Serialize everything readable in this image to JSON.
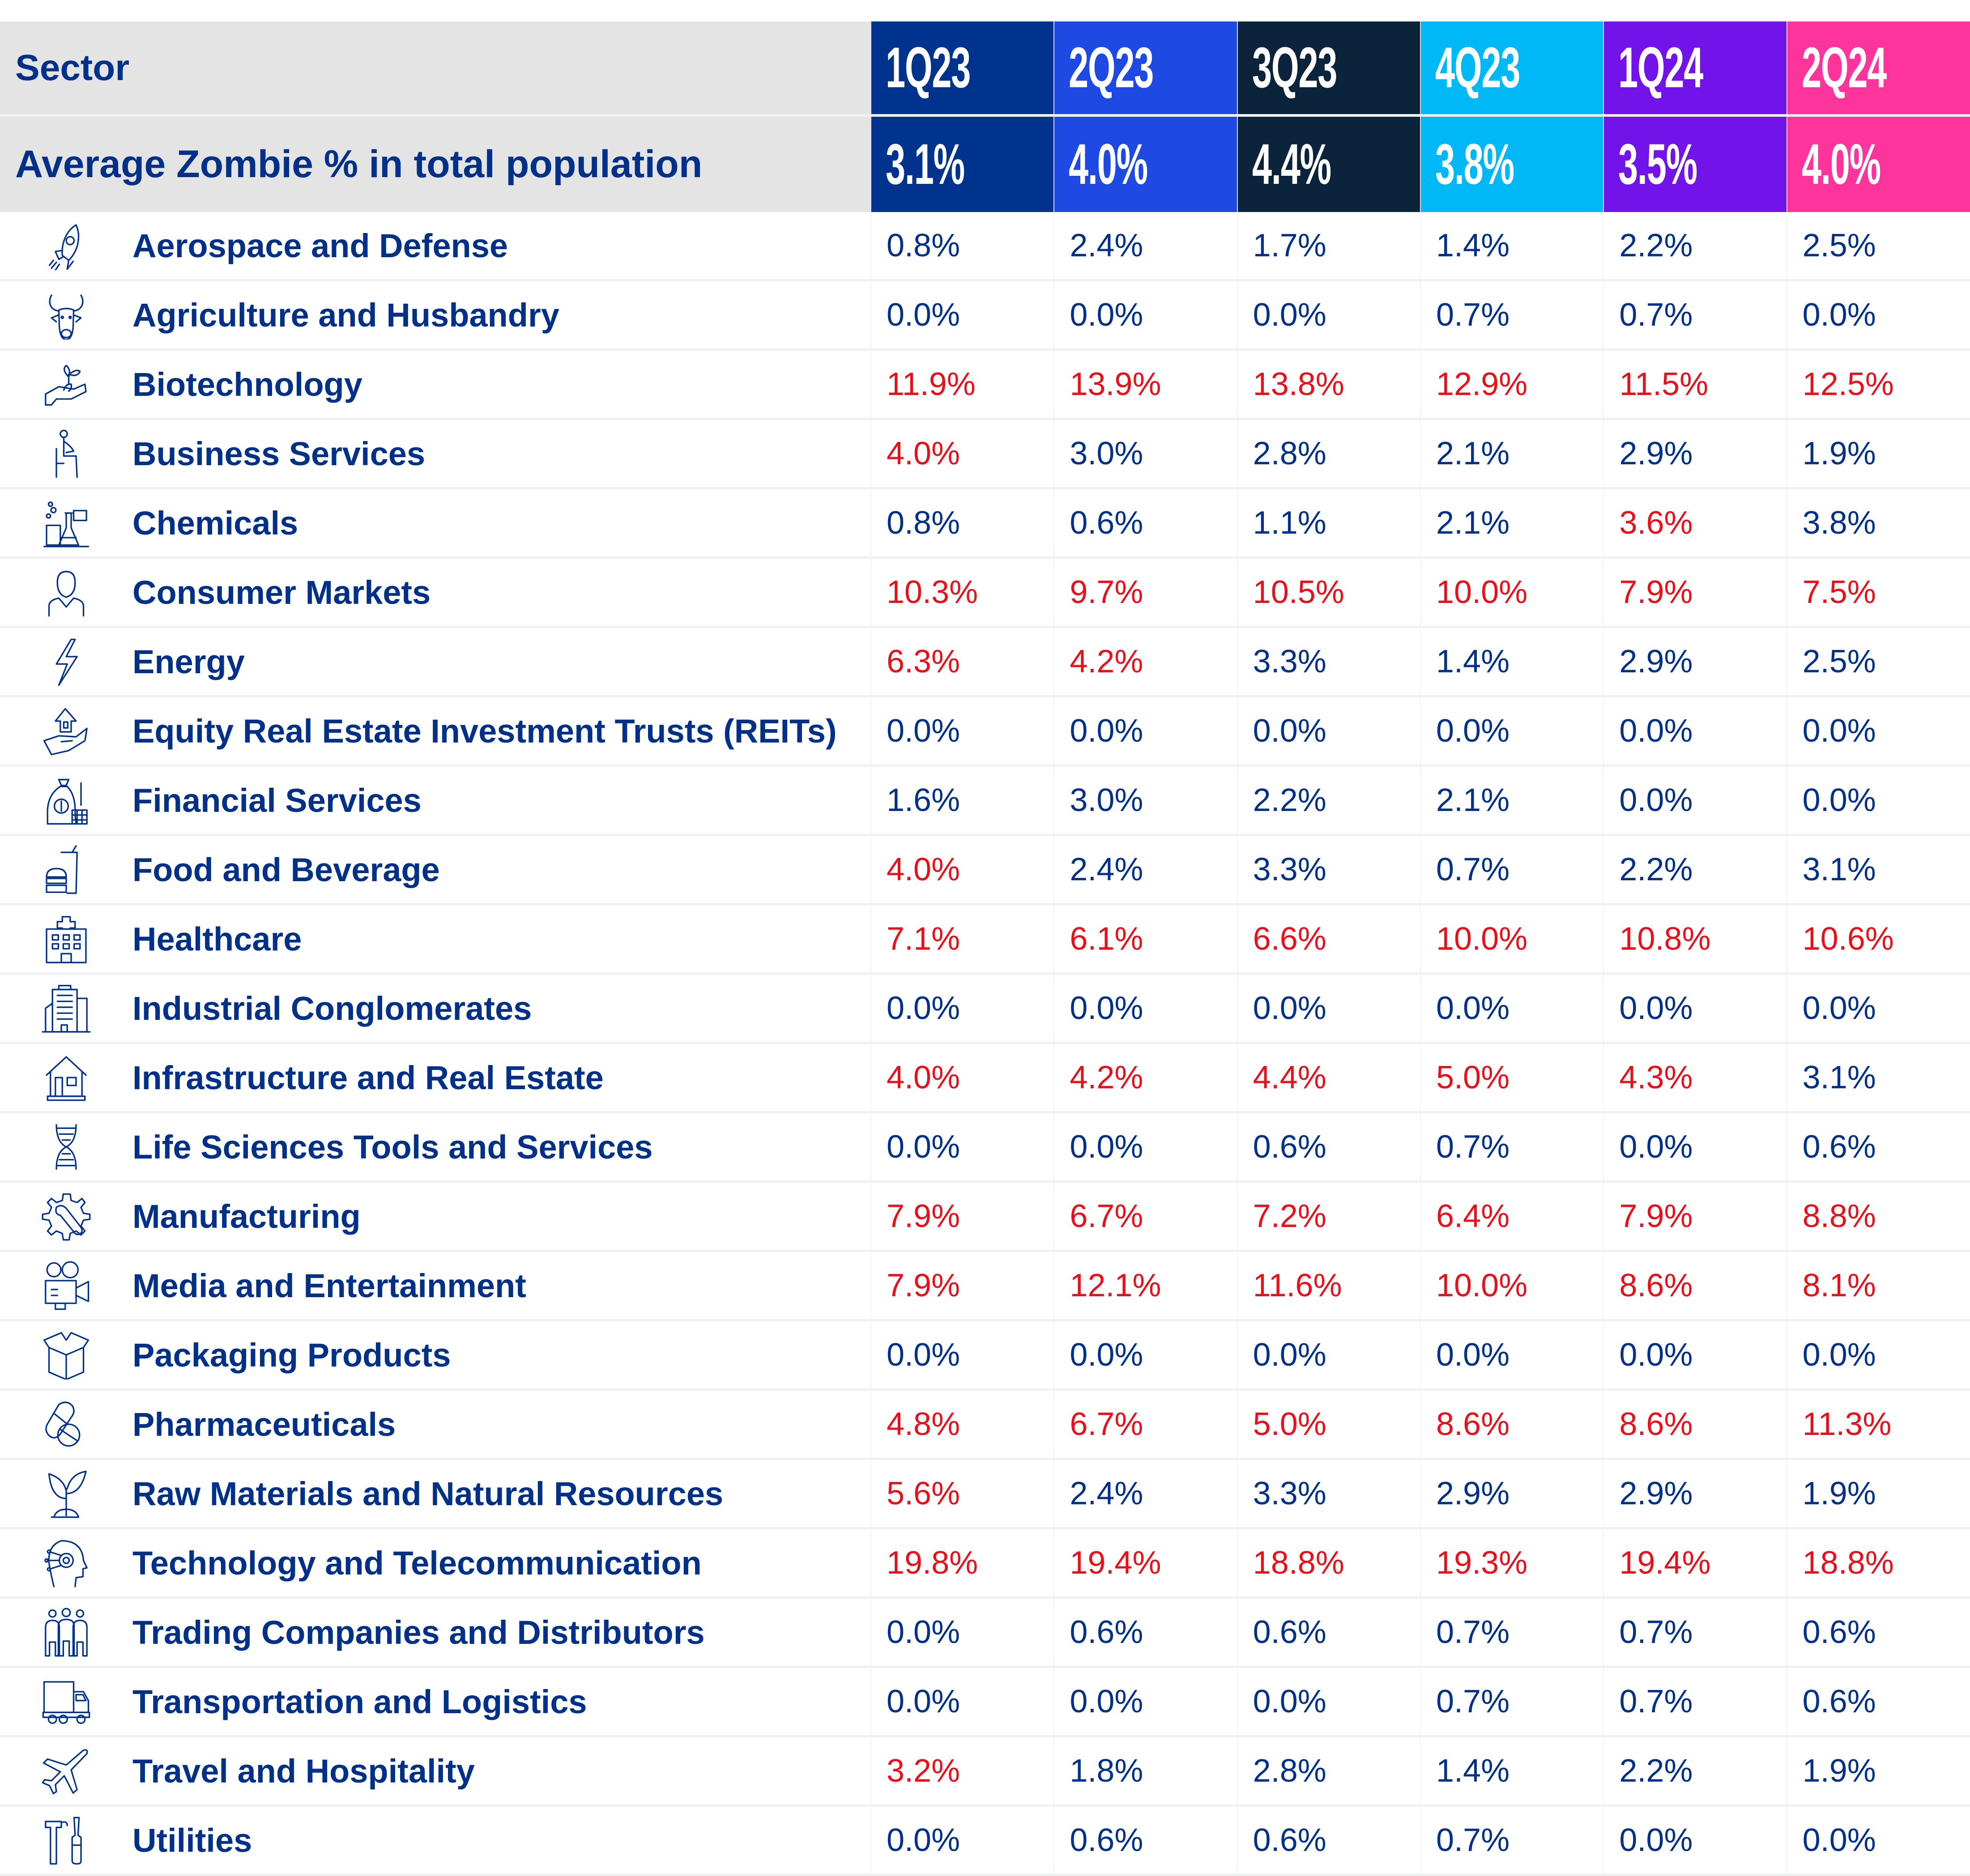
{
  "header": {
    "sector_label": "Sector",
    "average_label": "Average Zombie % in total population",
    "quarters": [
      {
        "label": "1Q23",
        "average": "3.1%",
        "color": "#00338d"
      },
      {
        "label": "2Q23",
        "average": "4.0%",
        "color": "#1e49e2"
      },
      {
        "label": "3Q23",
        "average": "4.4%",
        "color": "#0c233c"
      },
      {
        "label": "4Q23",
        "average": "3.8%",
        "color": "#00b8f5"
      },
      {
        "label": "1Q24",
        "average": "3.5%",
        "color": "#7213ea"
      },
      {
        "label": "2Q24",
        "average": "4.0%",
        "color": "#fd349c"
      }
    ]
  },
  "colors": {
    "text_primary": "#003087",
    "highlight": "#e8101a",
    "header_background": "#e4e4e4"
  },
  "rows": [
    {
      "sector": "Aerospace and Defense",
      "icon": "rocket-icon",
      "values": [
        "0.8%",
        "2.4%",
        "1.7%",
        "1.4%",
        "2.2%",
        "2.5%"
      ],
      "highlight": [
        false,
        false,
        false,
        false,
        false,
        false
      ]
    },
    {
      "sector": "Agriculture and Husbandry",
      "icon": "bull-icon",
      "values": [
        "0.0%",
        "0.0%",
        "0.0%",
        "0.7%",
        "0.7%",
        "0.0%"
      ],
      "highlight": [
        false,
        false,
        false,
        false,
        false,
        false
      ]
    },
    {
      "sector": "Biotechnology",
      "icon": "hand-sprout-icon",
      "values": [
        "11.9%",
        "13.9%",
        "13.8%",
        "12.9%",
        "11.5%",
        "12.5%"
      ],
      "highlight": [
        true,
        true,
        true,
        true,
        true,
        true
      ]
    },
    {
      "sector": "Business Services",
      "icon": "seated-person-icon",
      "values": [
        "4.0%",
        "3.0%",
        "2.8%",
        "2.1%",
        "2.9%",
        "1.9%"
      ],
      "highlight": [
        true,
        false,
        false,
        false,
        false,
        false
      ]
    },
    {
      "sector": "Chemicals",
      "icon": "lab-flask-icon",
      "values": [
        "0.8%",
        "0.6%",
        "1.1%",
        "2.1%",
        "3.6%",
        "3.8%"
      ],
      "highlight": [
        false,
        false,
        false,
        false,
        true,
        false
      ]
    },
    {
      "sector": "Consumer Markets",
      "icon": "person-icon",
      "values": [
        "10.3%",
        "9.7%",
        "10.5%",
        "10.0%",
        "7.9%",
        "7.5%"
      ],
      "highlight": [
        true,
        true,
        true,
        true,
        true,
        true
      ]
    },
    {
      "sector": "Energy",
      "icon": "lightning-icon",
      "values": [
        "6.3%",
        "4.2%",
        "3.3%",
        "1.4%",
        "2.9%",
        "2.5%"
      ],
      "highlight": [
        true,
        true,
        false,
        false,
        false,
        false
      ]
    },
    {
      "sector": "Equity Real Estate Investment Trusts (REITs)",
      "icon": "hand-house-icon",
      "values": [
        "0.0%",
        "0.0%",
        "0.0%",
        "0.0%",
        "0.0%",
        "0.0%"
      ],
      "highlight": [
        false,
        false,
        false,
        false,
        false,
        false
      ]
    },
    {
      "sector": "Financial Services",
      "icon": "money-bag-icon",
      "values": [
        "1.6%",
        "3.0%",
        "2.2%",
        "2.1%",
        "0.0%",
        "0.0%"
      ],
      "highlight": [
        false,
        false,
        false,
        false,
        false,
        false
      ]
    },
    {
      "sector": "Food and Beverage",
      "icon": "burger-drink-icon",
      "values": [
        "4.0%",
        "2.4%",
        "3.3%",
        "0.7%",
        "2.2%",
        "3.1%"
      ],
      "highlight": [
        true,
        false,
        false,
        false,
        false,
        false
      ]
    },
    {
      "sector": "Healthcare",
      "icon": "hospital-icon",
      "values": [
        "7.1%",
        "6.1%",
        "6.6%",
        "10.0%",
        "10.8%",
        "10.6%"
      ],
      "highlight": [
        true,
        true,
        true,
        true,
        true,
        true
      ]
    },
    {
      "sector": "Industrial Conglomerates",
      "icon": "office-building-icon",
      "values": [
        "0.0%",
        "0.0%",
        "0.0%",
        "0.0%",
        "0.0%",
        "0.0%"
      ],
      "highlight": [
        false,
        false,
        false,
        false,
        false,
        false
      ]
    },
    {
      "sector": "Infrastructure and Real Estate",
      "icon": "house-icon",
      "values": [
        "4.0%",
        "4.2%",
        "4.4%",
        "5.0%",
        "4.3%",
        "3.1%"
      ],
      "highlight": [
        true,
        true,
        true,
        true,
        true,
        false
      ]
    },
    {
      "sector": "Life Sciences Tools and Services",
      "icon": "dna-icon",
      "values": [
        "0.0%",
        "0.0%",
        "0.6%",
        "0.7%",
        "0.0%",
        "0.6%"
      ],
      "highlight": [
        false,
        false,
        false,
        false,
        false,
        false
      ]
    },
    {
      "sector": "Manufacturing",
      "icon": "gear-wrench-icon",
      "values": [
        "7.9%",
        "6.7%",
        "7.2%",
        "6.4%",
        "7.9%",
        "8.8%"
      ],
      "highlight": [
        true,
        true,
        true,
        true,
        true,
        true
      ]
    },
    {
      "sector": "Media and Entertainment",
      "icon": "video-camera-icon",
      "values": [
        "7.9%",
        "12.1%",
        "11.6%",
        "10.0%",
        "8.6%",
        "8.1%"
      ],
      "highlight": [
        true,
        true,
        true,
        true,
        true,
        true
      ]
    },
    {
      "sector": "Packaging Products",
      "icon": "open-box-icon",
      "values": [
        "0.0%",
        "0.0%",
        "0.0%",
        "0.0%",
        "0.0%",
        "0.0%"
      ],
      "highlight": [
        false,
        false,
        false,
        false,
        false,
        false
      ]
    },
    {
      "sector": "Pharmaceuticals",
      "icon": "pills-icon",
      "values": [
        "4.8%",
        "6.7%",
        "5.0%",
        "8.6%",
        "8.6%",
        "11.3%"
      ],
      "highlight": [
        true,
        true,
        true,
        true,
        true,
        true
      ]
    },
    {
      "sector": "Raw Materials and Natural Resources",
      "icon": "plant-icon",
      "values": [
        "5.6%",
        "2.4%",
        "3.3%",
        "2.9%",
        "2.9%",
        "1.9%"
      ],
      "highlight": [
        true,
        false,
        false,
        false,
        false,
        false
      ]
    },
    {
      "sector": "Technology and Telecommunication",
      "icon": "tech-head-icon",
      "values": [
        "19.8%",
        "19.4%",
        "18.8%",
        "19.3%",
        "19.4%",
        "18.8%"
      ],
      "highlight": [
        true,
        true,
        true,
        true,
        true,
        true
      ]
    },
    {
      "sector": "Trading Companies and Distributors",
      "icon": "group-people-icon",
      "values": [
        "0.0%",
        "0.6%",
        "0.6%",
        "0.7%",
        "0.7%",
        "0.6%"
      ],
      "highlight": [
        false,
        false,
        false,
        false,
        false,
        false
      ]
    },
    {
      "sector": "Transportation and Logistics",
      "icon": "truck-icon",
      "values": [
        "0.0%",
        "0.0%",
        "0.0%",
        "0.7%",
        "0.7%",
        "0.6%"
      ],
      "highlight": [
        false,
        false,
        false,
        false,
        false,
        false
      ]
    },
    {
      "sector": "Travel and Hospitality",
      "icon": "airplane-icon",
      "values": [
        "3.2%",
        "1.8%",
        "2.8%",
        "1.4%",
        "2.2%",
        "1.9%"
      ],
      "highlight": [
        true,
        false,
        false,
        false,
        false,
        false
      ]
    },
    {
      "sector": "Utilities",
      "icon": "tools-icon",
      "values": [
        "0.0%",
        "0.6%",
        "0.6%",
        "0.7%",
        "0.0%",
        "0.0%"
      ],
      "highlight": [
        false,
        false,
        false,
        false,
        false,
        false
      ]
    }
  ]
}
